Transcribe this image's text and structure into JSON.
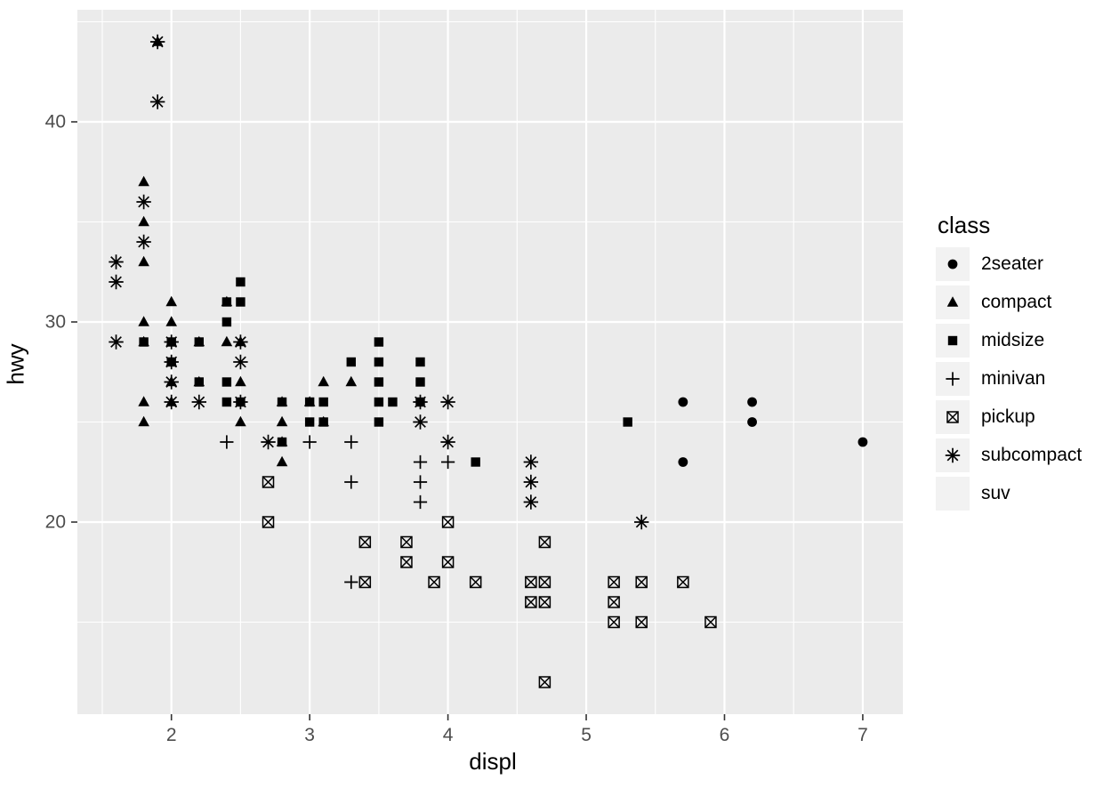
{
  "chart_data": {
    "type": "scatter",
    "title": "",
    "xlabel": "displ",
    "ylabel": "hwy",
    "xlim": [
      1.32,
      7.29
    ],
    "ylim": [
      10.4,
      45.6
    ],
    "x_ticks": [
      2,
      3,
      4,
      5,
      6,
      7
    ],
    "y_ticks": [
      20,
      30,
      40
    ],
    "x_minor": [
      1.5,
      2.5,
      3.5,
      4.5,
      5.5,
      6.5
    ],
    "y_minor": [
      15,
      25,
      35,
      45
    ],
    "grid": "white major and minor gridlines on grey panel",
    "panel_bg": "#EBEBEB",
    "point_color": "#000000",
    "legend_position": "right",
    "series": [
      {
        "name": "2seater",
        "shape": "circle",
        "points": [
          [
            5.7,
            26
          ],
          [
            5.7,
            23
          ],
          [
            6.2,
            26
          ],
          [
            6.2,
            25
          ],
          [
            7.0,
            24
          ]
        ]
      },
      {
        "name": "compact",
        "shape": "triangle",
        "points": [
          [
            1.9,
            44
          ],
          [
            1.8,
            37
          ],
          [
            1.8,
            35
          ],
          [
            1.8,
            33
          ],
          [
            1.8,
            30
          ],
          [
            1.8,
            29
          ],
          [
            1.8,
            26
          ],
          [
            1.8,
            25
          ],
          [
            2.0,
            31
          ],
          [
            2.0,
            30
          ],
          [
            2.0,
            29
          ],
          [
            2.0,
            28
          ],
          [
            2.0,
            27
          ],
          [
            2.0,
            26
          ],
          [
            2.2,
            29
          ],
          [
            2.2,
            27
          ],
          [
            2.4,
            31
          ],
          [
            2.4,
            29
          ],
          [
            2.5,
            29
          ],
          [
            2.5,
            27
          ],
          [
            2.5,
            25
          ],
          [
            2.8,
            26
          ],
          [
            2.8,
            25
          ],
          [
            2.8,
            24
          ],
          [
            2.8,
            23
          ],
          [
            3.0,
            26
          ],
          [
            3.1,
            27
          ],
          [
            3.1,
            25
          ],
          [
            3.3,
            27
          ]
        ]
      },
      {
        "name": "midsize",
        "shape": "square",
        "points": [
          [
            1.8,
            29
          ],
          [
            2.0,
            29
          ],
          [
            2.0,
            28
          ],
          [
            2.2,
            29
          ],
          [
            2.2,
            27
          ],
          [
            2.4,
            31
          ],
          [
            2.4,
            30
          ],
          [
            2.4,
            27
          ],
          [
            2.4,
            26
          ],
          [
            2.5,
            32
          ],
          [
            2.5,
            31
          ],
          [
            2.5,
            26
          ],
          [
            2.8,
            26
          ],
          [
            2.8,
            24
          ],
          [
            3.0,
            26
          ],
          [
            3.0,
            25
          ],
          [
            3.1,
            26
          ],
          [
            3.1,
            25
          ],
          [
            3.3,
            28
          ],
          [
            3.5,
            29
          ],
          [
            3.5,
            28
          ],
          [
            3.5,
            27
          ],
          [
            3.5,
            26
          ],
          [
            3.5,
            25
          ],
          [
            3.6,
            26
          ],
          [
            3.8,
            28
          ],
          [
            3.8,
            27
          ],
          [
            3.8,
            26
          ],
          [
            4.2,
            23
          ],
          [
            5.3,
            25
          ]
        ]
      },
      {
        "name": "minivan",
        "shape": "plus",
        "points": [
          [
            2.4,
            24
          ],
          [
            3.0,
            24
          ],
          [
            3.3,
            24
          ],
          [
            3.3,
            22
          ],
          [
            3.3,
            17
          ],
          [
            3.8,
            23
          ],
          [
            3.8,
            22
          ],
          [
            3.8,
            21
          ],
          [
            4.0,
            23
          ]
        ]
      },
      {
        "name": "pickup",
        "shape": "box-x",
        "points": [
          [
            2.7,
            22
          ],
          [
            2.7,
            20
          ],
          [
            3.4,
            19
          ],
          [
            3.4,
            17
          ],
          [
            3.7,
            19
          ],
          [
            3.7,
            18
          ],
          [
            3.9,
            17
          ],
          [
            4.0,
            20
          ],
          [
            4.0,
            18
          ],
          [
            4.2,
            17
          ],
          [
            4.6,
            17
          ],
          [
            4.6,
            16
          ],
          [
            4.7,
            19
          ],
          [
            4.7,
            17
          ],
          [
            4.7,
            16
          ],
          [
            4.7,
            12
          ],
          [
            5.2,
            17
          ],
          [
            5.2,
            16
          ],
          [
            5.2,
            15
          ],
          [
            5.4,
            17
          ],
          [
            5.4,
            15
          ],
          [
            5.7,
            17
          ],
          [
            5.9,
            15
          ]
        ]
      },
      {
        "name": "subcompact",
        "shape": "asterisk",
        "points": [
          [
            1.6,
            33
          ],
          [
            1.6,
            32
          ],
          [
            1.6,
            29
          ],
          [
            1.8,
            36
          ],
          [
            1.8,
            34
          ],
          [
            1.9,
            44
          ],
          [
            1.9,
            41
          ],
          [
            2.0,
            29
          ],
          [
            2.0,
            28
          ],
          [
            2.0,
            27
          ],
          [
            2.0,
            26
          ],
          [
            2.2,
            26
          ],
          [
            2.5,
            29
          ],
          [
            2.5,
            28
          ],
          [
            2.5,
            26
          ],
          [
            2.7,
            24
          ],
          [
            3.8,
            26
          ],
          [
            3.8,
            25
          ],
          [
            4.0,
            26
          ],
          [
            4.0,
            24
          ],
          [
            4.6,
            23
          ],
          [
            4.6,
            22
          ],
          [
            4.6,
            21
          ],
          [
            5.4,
            20
          ]
        ]
      },
      {
        "name": "suv",
        "shape": "none",
        "points": []
      }
    ]
  },
  "legend": {
    "title": "class",
    "key_bg": "#F2F2F2",
    "entries": [
      {
        "label": "2seater",
        "shape": "circle"
      },
      {
        "label": "compact",
        "shape": "triangle"
      },
      {
        "label": "midsize",
        "shape": "square"
      },
      {
        "label": "minivan",
        "shape": "plus"
      },
      {
        "label": "pickup",
        "shape": "box-x"
      },
      {
        "label": "subcompact",
        "shape": "asterisk"
      },
      {
        "label": "suv",
        "shape": "none"
      }
    ]
  },
  "axes": {
    "tick_mark_color": "#333333",
    "tick_label_color": "#4D4D4D",
    "grid_color": "#FFFFFF"
  }
}
